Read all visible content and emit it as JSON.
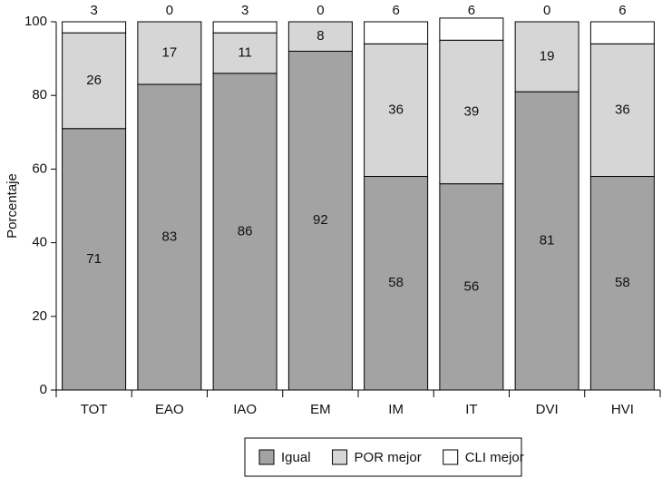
{
  "chart_data": {
    "type": "stacked_bar",
    "y_label": "Porcentaje",
    "categories": [
      "TOT",
      "EAO",
      "IAO",
      "EM",
      "IM",
      "IT",
      "DVI",
      "HVI"
    ],
    "series": [
      {
        "name": "Igual",
        "color": "#a3a3a3",
        "values": [
          71,
          83,
          86,
          92,
          58,
          56,
          81,
          58
        ]
      },
      {
        "name": "POR mejor",
        "color": "#d6d6d6",
        "values": [
          26,
          17,
          11,
          8,
          36,
          39,
          19,
          36
        ]
      },
      {
        "name": "CLI mejor",
        "color": "#ffffff",
        "values": [
          3,
          0,
          3,
          0,
          6,
          6,
          0,
          6
        ]
      }
    ],
    "ylim": [
      0,
      100
    ],
    "yticks": [
      0,
      20,
      40,
      60,
      80,
      100
    ]
  }
}
